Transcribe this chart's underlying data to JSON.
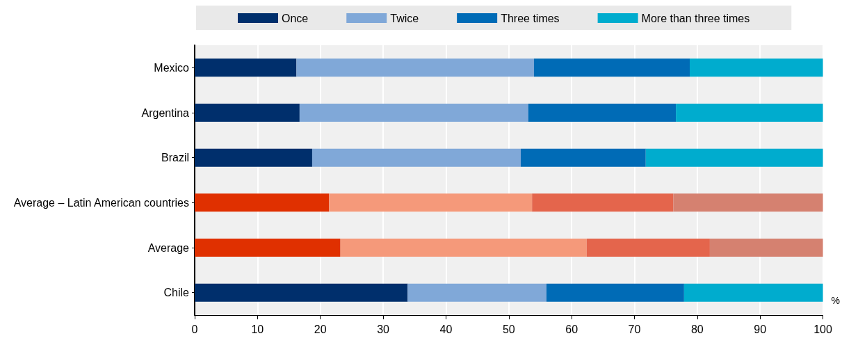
{
  "chart_data": {
    "type": "bar",
    "orientation": "horizontal",
    "stacked": true,
    "xlabel": "%",
    "categories": [
      "Mexico",
      "Argentina",
      "Brazil",
      "Average – Latin American countries",
      "Average",
      "Chile"
    ],
    "series": [
      {
        "name": "Once",
        "color": "#002f6c",
        "colors": [
          "#002f6c",
          "#002f6c",
          "#002f6c",
          "#e03000",
          "#e03000",
          "#002f6c"
        ],
        "values": [
          16.2,
          16.7,
          18.7,
          21.4,
          23.2,
          33.9
        ]
      },
      {
        "name": "Twice",
        "color": "#80a8d8",
        "colors": [
          "#80a8d8",
          "#80a8d8",
          "#80a8d8",
          "#f5997a",
          "#f5997a",
          "#80a8d8"
        ],
        "values": [
          37.8,
          36.4,
          33.2,
          32.3,
          39.2,
          22.1
        ]
      },
      {
        "name": "Three times",
        "color": "#006bb6",
        "colors": [
          "#006bb6",
          "#006bb6",
          "#006bb6",
          "#e4654c",
          "#e4654c",
          "#006bb6"
        ],
        "values": [
          24.8,
          23.5,
          19.9,
          22.5,
          19.6,
          21.9
        ]
      },
      {
        "name": "More than three times",
        "color": "#00acce",
        "colors": [
          "#00acce",
          "#00acce",
          "#00acce",
          "#d58170",
          "#d58170",
          "#00acce"
        ],
        "values": [
          21.2,
          23.4,
          28.2,
          23.8,
          18.0,
          22.1
        ]
      }
    ],
    "xlim": [
      0,
      100
    ],
    "xticks": [
      0,
      10,
      20,
      30,
      40,
      50,
      60,
      70,
      80,
      90,
      100
    ],
    "grid": "x",
    "legend": "top"
  }
}
